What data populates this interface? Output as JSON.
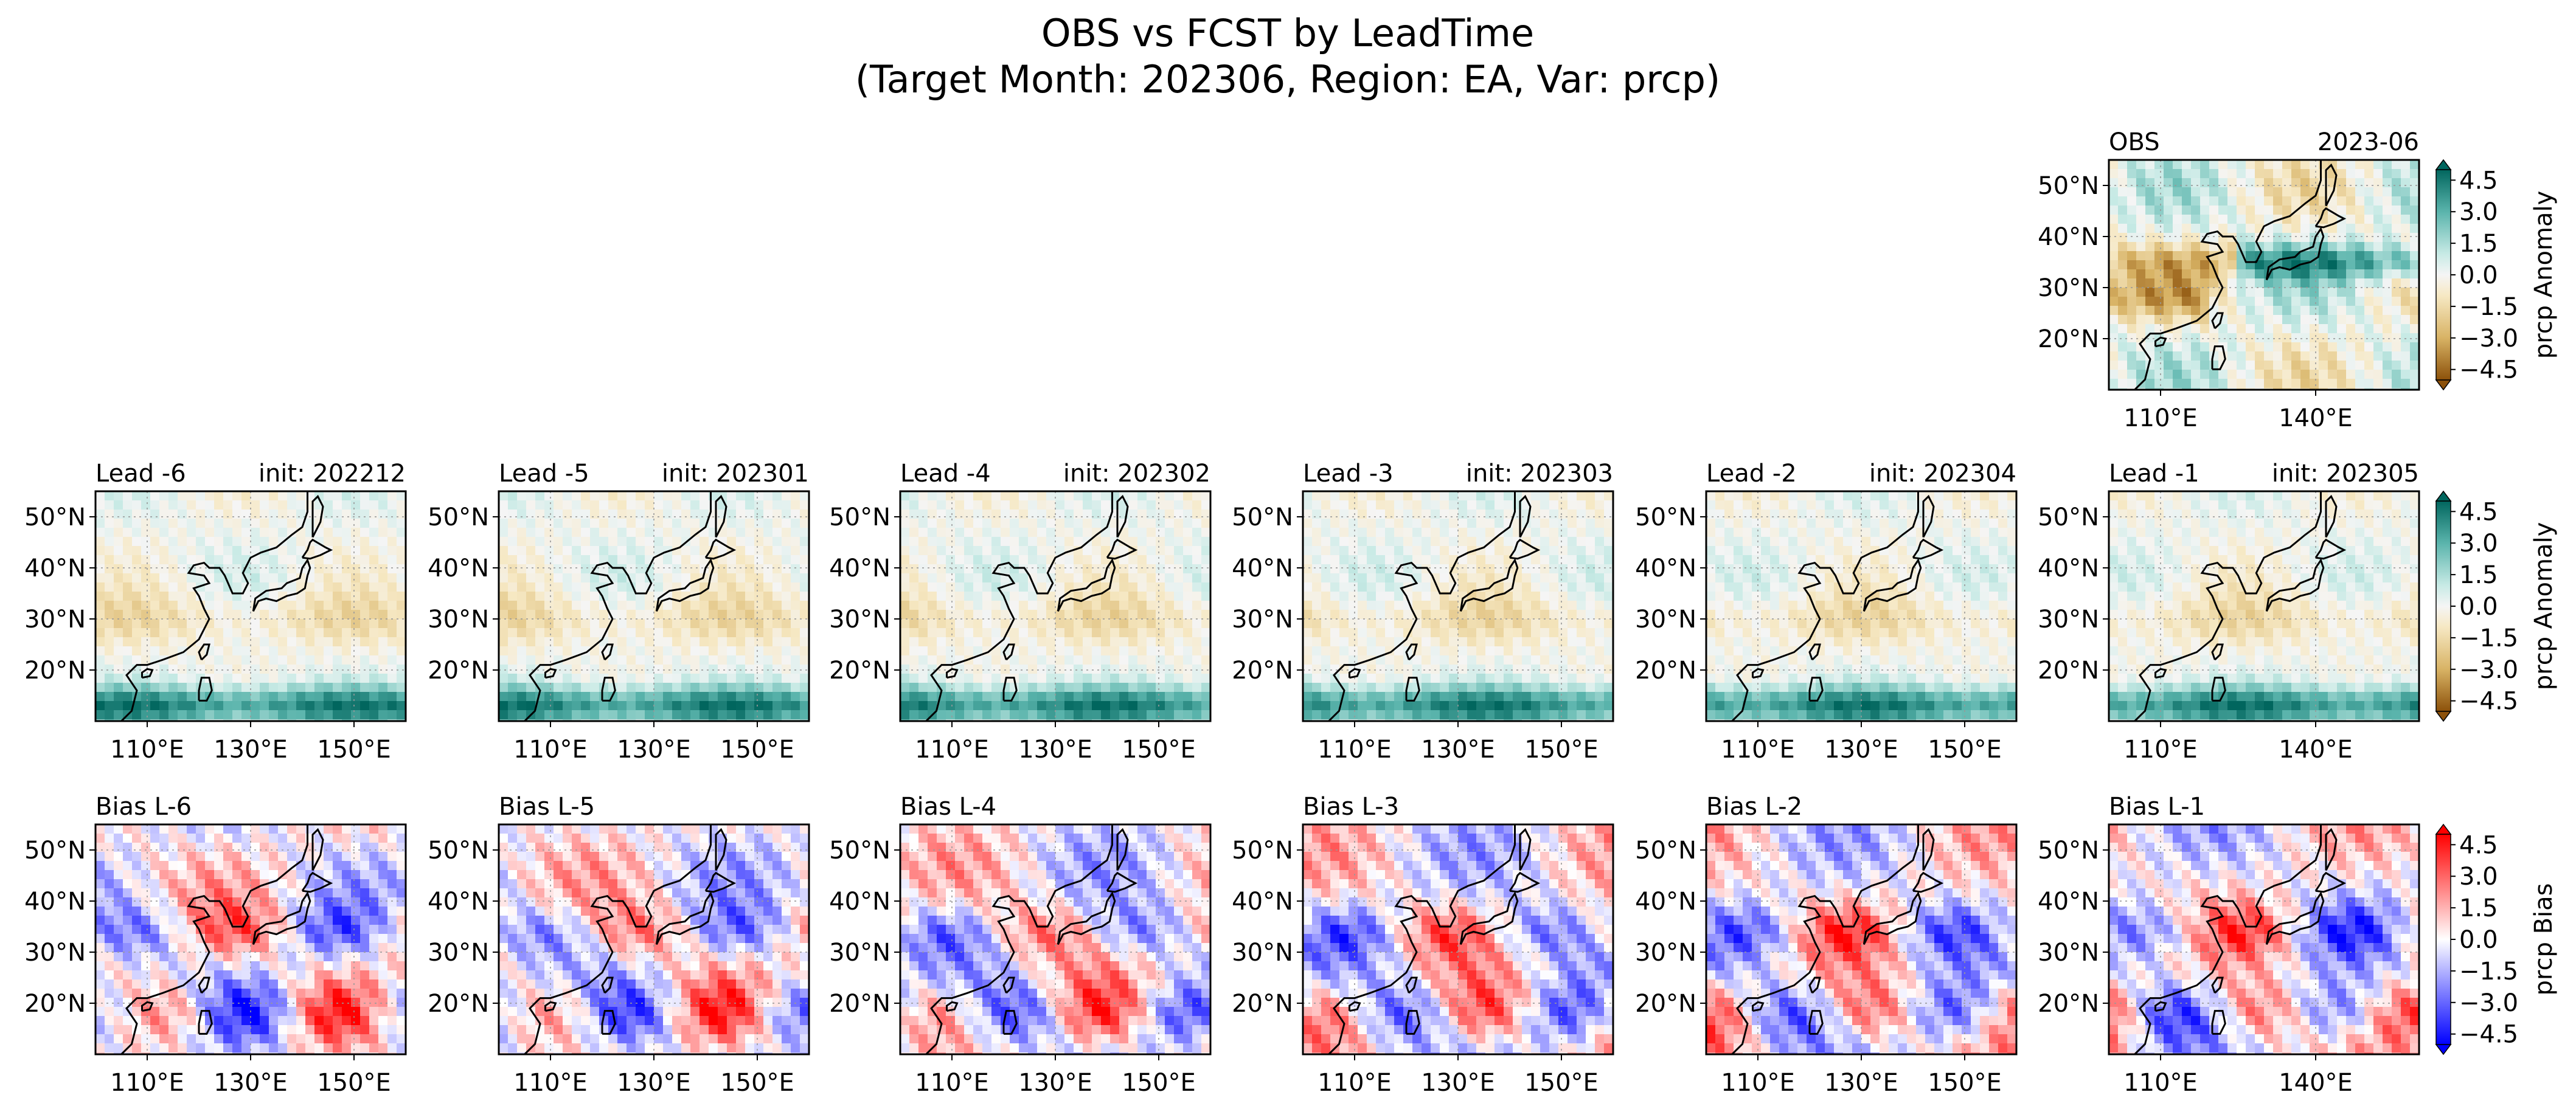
{
  "figure": {
    "title_line1": "OBS vs FCST by LeadTime",
    "title_line2": "(Target Month: 202306, Region: EA, Var: prcp)"
  },
  "chart_data": {
    "type": "heatmap",
    "title": "OBS vs FCST by LeadTime (Target Month: 202306, Region: EA, Var: prcp)",
    "lat_ticks": [
      "20°N",
      "30°N",
      "40°N",
      "50°N"
    ],
    "lat_tick_values": [
      20,
      30,
      40,
      50
    ],
    "lon_range": [
      100,
      160
    ],
    "lat_range": [
      10,
      55
    ],
    "obs": {
      "left_title": "OBS",
      "right_title": "2023-06",
      "lon_ticks": [
        "110°E",
        "140°E"
      ],
      "lon_tick_values": [
        110,
        140
      ],
      "colorbar_label": "prcp Anomaly"
    },
    "leads": [
      {
        "left_title": "Lead -6",
        "right_title": "init: 202212",
        "bias_title": "Bias L-6"
      },
      {
        "left_title": "Lead -5",
        "right_title": "init: 202301",
        "bias_title": "Bias L-5"
      },
      {
        "left_title": "Lead -4",
        "right_title": "init: 202302",
        "bias_title": "Bias L-4"
      },
      {
        "left_title": "Lead -3",
        "right_title": "init: 202303",
        "bias_title": "Bias L-3"
      },
      {
        "left_title": "Lead -2",
        "right_title": "init: 202304",
        "bias_title": "Bias L-2"
      },
      {
        "left_title": "Lead -1",
        "right_title": "init: 202305",
        "bias_title": "Bias L-1"
      }
    ],
    "lon_ticks_default": [
      "110°E",
      "130°E",
      "150°E"
    ],
    "lon_ticks_default_values": [
      110,
      130,
      150
    ],
    "lon_ticks_last": [
      "110°E",
      "140°E"
    ],
    "lon_ticks_last_values": [
      110,
      140
    ],
    "colorbars": [
      {
        "label": "prcp Anomaly",
        "ticks": [
          "4.5",
          "3.0",
          "1.5",
          "0.0",
          "−1.5",
          "−3.0",
          "−4.5"
        ],
        "values": [
          4.5,
          3.0,
          1.5,
          0.0,
          -1.5,
          -3.0,
          -4.5
        ],
        "cmap": "BrBG",
        "range": [
          -5,
          5
        ]
      },
      {
        "label": "prcp Anomaly",
        "ticks": [
          "4.5",
          "3.0",
          "1.5",
          "0.0",
          "−1.5",
          "−3.0",
          "−4.5"
        ],
        "values": [
          4.5,
          3.0,
          1.5,
          0.0,
          -1.5,
          -3.0,
          -4.5
        ],
        "cmap": "BrBG",
        "range": [
          -5,
          5
        ]
      },
      {
        "label": "prcp Bias",
        "ticks": [
          "4.5",
          "3.0",
          "1.5",
          "0.0",
          "−1.5",
          "−3.0",
          "−4.5"
        ],
        "values": [
          4.5,
          3.0,
          1.5,
          0.0,
          -1.5,
          -3.0,
          -4.5
        ],
        "cmap": "bwr",
        "range": [
          -5,
          5
        ]
      }
    ],
    "colors": {
      "anom_pos": "#01665e",
      "anom_neg": "#8c510a",
      "bias_pos": "#ff0000",
      "bias_neg": "#0000ff",
      "coast": "#000000",
      "grid": "#999999"
    }
  }
}
